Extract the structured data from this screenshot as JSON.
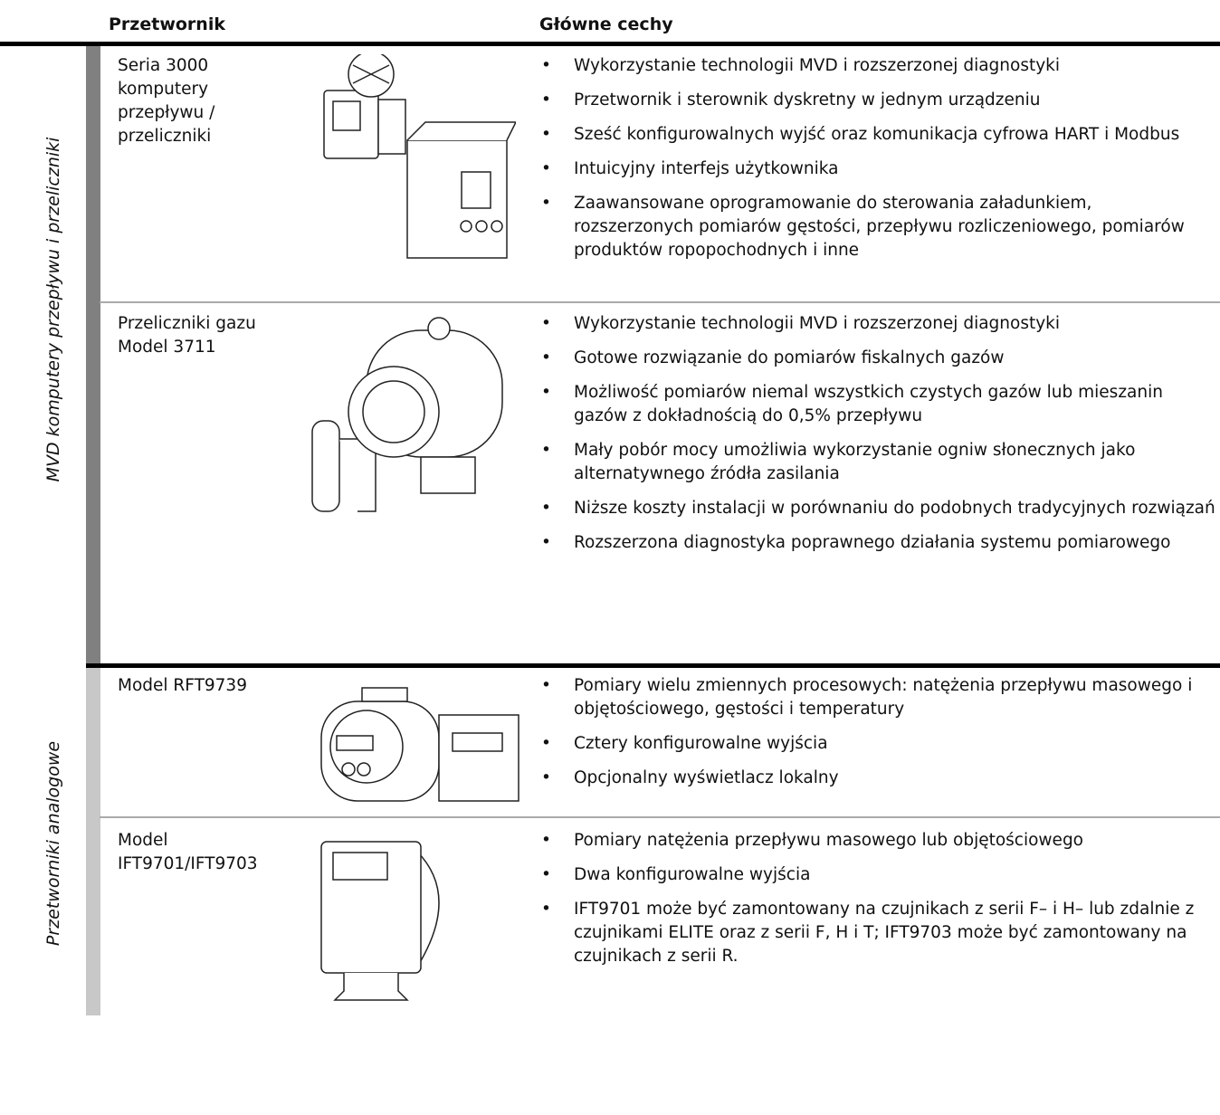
{
  "header": {
    "col1": "Przetwornik",
    "col2": "Główne cechy"
  },
  "sections": [
    {
      "label": "MVD komputery przepływu i przeliczniki",
      "rows": [
        {
          "name": [
            "Seria 3000",
            "komputery",
            "przepływu /",
            "przeliczniki"
          ],
          "features": [
            "Wykorzystanie technologii MVD i rozszerzonej diagnostyki",
            "Przetwornik i sterownik dyskretny w jednym urządzeniu",
            "Sześć konfigurowalnych wyjść oraz komunikacja cyfrowa HART i Modbus",
            "Intuicyjny interfejs użytkownika",
            "Zaawansowane oprogramowanie do sterowania załadunkiem, rozszerzonych pomiarów gęstości, przepływu rozliczeniowego, pomiarów produktów ropopochodnych i inne"
          ]
        },
        {
          "name": [
            "Przeliczniki gazu",
            "Model 3711"
          ],
          "features": [
            "Wykorzystanie technologii MVD i rozszerzonej diagnostyki",
            "Gotowe rozwiązanie do pomiarów fiskalnych gazów",
            "Możliwość pomiarów niemal wszystkich czystych gazów lub mieszanin gazów z dokładnością do 0,5% przepływu",
            "Mały pobór mocy umożliwia wykorzystanie ogniw słonecznych jako alternatywnego źródła zasilania",
            "Niższe koszty instalacji w porównaniu do podobnych tradycyjnych rozwiązań",
            "Rozszerzona diagnostyka poprawnego działania systemu pomiarowego"
          ]
        }
      ]
    },
    {
      "label": "Przetworniki analogowe",
      "rows": [
        {
          "name": [
            "Model RFT9739"
          ],
          "features": [
            "Pomiary wielu zmiennych procesowych: natężenia przepływu masowego i objętościowego, gęstości i temperatury",
            "Cztery konfigurowalne wyjścia",
            "Opcjonalny wyświetlacz lokalny"
          ]
        },
        {
          "name": [
            "Model",
            "IFT9701/IFT9703"
          ],
          "features": [
            "Pomiary natężenia przepływu masowego lub objętościowego",
            "Dwa konfigurowalne wyjścia",
            "IFT9701 może być zamontowany na czujnikach z serii F– i H– lub zdalnie z czujnikami ELITE oraz z serii F, H i T; IFT9703 może być zamontowany na czujnikach z serii R."
          ]
        }
      ]
    }
  ]
}
